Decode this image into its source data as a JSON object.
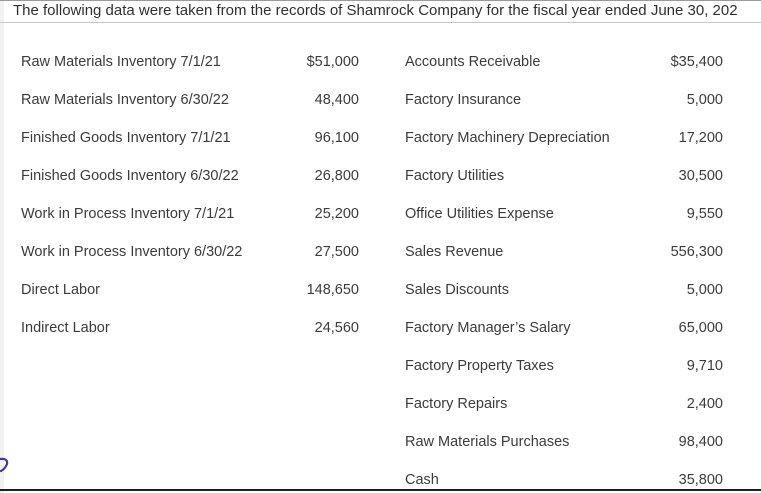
{
  "intro": "The following data were taken from the records of Shamrock Company for the fiscal year ended June 30, 202",
  "left_items": [
    {
      "label": "Raw Materials Inventory 7/1/21",
      "amount": "$51,000"
    },
    {
      "label": "Raw Materials Inventory 6/30/22",
      "amount": "48,400"
    },
    {
      "label": "Finished Goods Inventory 7/1/21",
      "amount": "96,100"
    },
    {
      "label": "Finished Goods Inventory 6/30/22",
      "amount": "26,800"
    },
    {
      "label": "Work in Process Inventory 7/1/21",
      "amount": "25,200"
    },
    {
      "label": "Work in Process Inventory 6/30/22",
      "amount": "27,500"
    },
    {
      "label": "Direct Labor",
      "amount": "148,650"
    },
    {
      "label": "Indirect Labor",
      "amount": "24,560"
    }
  ],
  "right_items": [
    {
      "label": "Accounts Receivable",
      "amount": "$35,400"
    },
    {
      "label": "Factory Insurance",
      "amount": "5,000"
    },
    {
      "label": "Factory Machinery Depreciation",
      "amount": "17,200"
    },
    {
      "label": "Factory Utilities",
      "amount": "30,500"
    },
    {
      "label": "Office Utilities Expense",
      "amount": "9,550"
    },
    {
      "label": "Sales Revenue",
      "amount": "556,300"
    },
    {
      "label": "Sales Discounts",
      "amount": "5,000"
    },
    {
      "label": "Factory Manager’s Salary",
      "amount": "65,000"
    },
    {
      "label": "Factory Property Taxes",
      "amount": "9,710"
    },
    {
      "label": "Factory Repairs",
      "amount": "2,400"
    },
    {
      "label": "Raw Materials Purchases",
      "amount": "98,400"
    },
    {
      "label": "Cash",
      "amount": "35,800"
    }
  ],
  "colors": {
    "text": "#3b3b3b",
    "rule": "#1e1e1e"
  },
  "icons": {
    "side_marker": "curved-arrow-icon"
  }
}
